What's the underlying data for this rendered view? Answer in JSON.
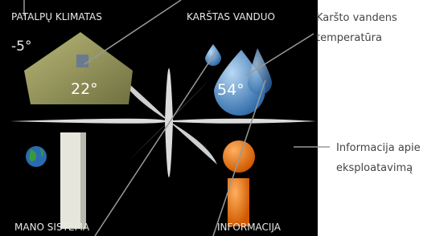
{
  "screen": {
    "quadrants": [
      {
        "title": "PATALPŲ KLIMATAS",
        "outdoor": "-5°",
        "value": "22°"
      },
      {
        "title": "KARŠTAS VANDUO",
        "value": "54°"
      },
      {
        "title": "MANO SISTEMA"
      },
      {
        "title": "INFORMACIJA"
      }
    ]
  },
  "annotations": [
    {
      "lines": [
        "Karšto vandens",
        "temperatūra"
      ]
    },
    {
      "lines": [
        "Informacija apie",
        "eksploatavimą"
      ]
    }
  ]
}
